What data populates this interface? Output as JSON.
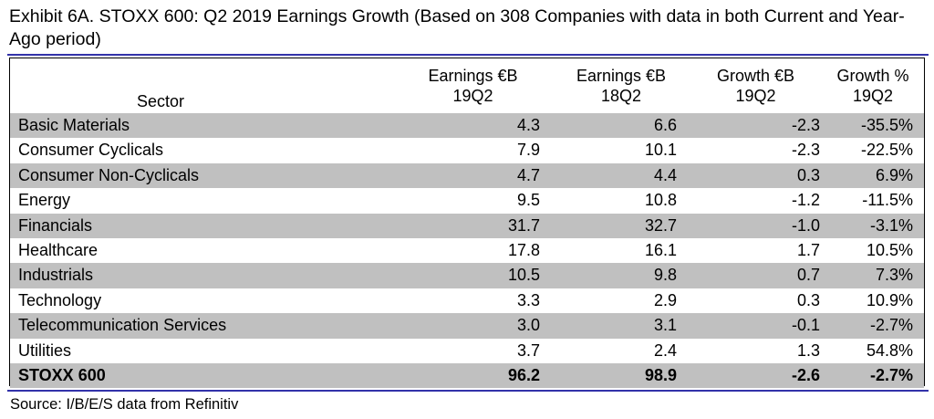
{
  "title": "Exhibit 6A.  STOXX 600: Q2 2019 Earnings Growth (Based on 308 Companies with data in both Current and Year-Ago period)",
  "colors": {
    "rule": "#3333aa",
    "shade": "#c0c0c0"
  },
  "chart_data": {
    "type": "table",
    "columns": [
      {
        "line1": "",
        "line2": "Sector"
      },
      {
        "line1": "Earnings €B",
        "line2": "19Q2"
      },
      {
        "line1": "Earnings €B",
        "line2": "18Q2"
      },
      {
        "line1": "Growth €B",
        "line2": "19Q2"
      },
      {
        "line1": "Growth %",
        "line2": "19Q2"
      }
    ],
    "rows": [
      {
        "sector": "Basic Materials",
        "e19": "4.3",
        "e18": "6.6",
        "g": "-2.3",
        "gp": "-35.5%"
      },
      {
        "sector": "Consumer Cyclicals",
        "e19": "7.9",
        "e18": "10.1",
        "g": "-2.3",
        "gp": "-22.5%"
      },
      {
        "sector": "Consumer Non-Cyclicals",
        "e19": "4.7",
        "e18": "4.4",
        "g": "0.3",
        "gp": "6.9%"
      },
      {
        "sector": "Energy",
        "e19": "9.5",
        "e18": "10.8",
        "g": "-1.2",
        "gp": "-11.5%"
      },
      {
        "sector": "Financials",
        "e19": "31.7",
        "e18": "32.7",
        "g": "-1.0",
        "gp": "-3.1%"
      },
      {
        "sector": "Healthcare",
        "e19": "17.8",
        "e18": "16.1",
        "g": "1.7",
        "gp": "10.5%"
      },
      {
        "sector": "Industrials",
        "e19": "10.5",
        "e18": "9.8",
        "g": "0.7",
        "gp": "7.3%"
      },
      {
        "sector": "Technology",
        "e19": "3.3",
        "e18": "2.9",
        "g": "0.3",
        "gp": "10.9%"
      },
      {
        "sector": "Telecommunication Services",
        "e19": "3.0",
        "e18": "3.1",
        "g": "-0.1",
        "gp": "-2.7%"
      },
      {
        "sector": "Utilities",
        "e19": "3.7",
        "e18": "2.4",
        "g": "1.3",
        "gp": "54.8%"
      }
    ],
    "total": {
      "sector": "STOXX 600",
      "e19": "96.2",
      "e18": "98.9",
      "g": "-2.6",
      "gp": "-2.7%"
    }
  },
  "source": "Source: I/B/E/S data from Refinitiv"
}
